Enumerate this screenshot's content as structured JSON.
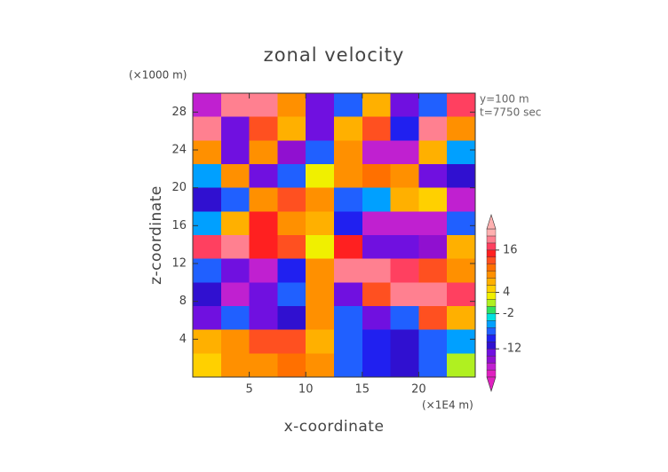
{
  "chart_data": {
    "type": "heatmap",
    "title": "zonal velocity",
    "x_label": "x-coordinate",
    "y_label": "z-coordinate",
    "x_unit": "(×1E4 m)",
    "y_unit": "(×1000 m)",
    "annotations": [
      "y=100 m",
      "t=7750 sec"
    ],
    "xlim": [
      0,
      25
    ],
    "ylim": [
      0,
      30
    ],
    "xticks": [
      5,
      10,
      15,
      20
    ],
    "yticks": [
      4,
      8,
      12,
      16,
      20,
      24,
      28
    ],
    "x": [
      1.25,
      3.75,
      6.25,
      8.75,
      11.25,
      13.75,
      16.25,
      18.75,
      21.25,
      23.75
    ],
    "y": [
      28.75,
      26.25,
      23.75,
      21.25,
      18.75,
      16.25,
      13.75,
      11.25,
      8.75,
      6.25,
      3.75,
      1.25
    ],
    "values": [
      [
        -18,
        18,
        18,
        8,
        -14,
        -8,
        6,
        -14,
        -8,
        16
      ],
      [
        18,
        -14,
        12,
        6,
        -14,
        6,
        12,
        -10,
        18,
        8
      ],
      [
        8,
        -14,
        8,
        -16,
        -8,
        8,
        -18,
        -18,
        6,
        -6
      ],
      [
        -6,
        8,
        -14,
        -8,
        2,
        8,
        10,
        8,
        -14,
        -12
      ],
      [
        -12,
        -8,
        8,
        12,
        8,
        -8,
        -6,
        6,
        4,
        -18
      ],
      [
        -6,
        6,
        14,
        8,
        6,
        -10,
        -18,
        -18,
        -18,
        -8
      ],
      [
        16,
        18,
        14,
        12,
        2,
        14,
        -14,
        -14,
        -16,
        6
      ],
      [
        -8,
        -14,
        -18,
        -10,
        8,
        18,
        18,
        16,
        12,
        8
      ],
      [
        -12,
        -18,
        -14,
        -8,
        8,
        -14,
        12,
        18,
        18,
        16
      ],
      [
        -14,
        -8,
        -14,
        -12,
        8,
        -8,
        -14,
        -8,
        12,
        6
      ],
      [
        6,
        8,
        12,
        12,
        6,
        -8,
        -10,
        -12,
        -8,
        -6
      ],
      [
        4,
        8,
        8,
        10,
        8,
        -8,
        -10,
        -12,
        -8,
        0
      ]
    ],
    "levels": [
      -20,
      -18,
      -16,
      -14,
      -12,
      -10,
      -8,
      -6,
      -4,
      -2,
      0,
      2,
      4,
      6,
      8,
      10,
      12,
      14,
      16,
      18,
      20,
      22
    ],
    "colors": [
      "#e020c0",
      "#c020d0",
      "#9010d0",
      "#7010e0",
      "#3010d0",
      "#2020f0",
      "#2060ff",
      "#00a0ff",
      "#00e0e0",
      "#30e060",
      "#b0f020",
      "#f0f000",
      "#ffd000",
      "#ffb000",
      "#ff9000",
      "#ff7000",
      "#ff5020",
      "#ff2020",
      "#ff4060",
      "#ff8090",
      "#ffb0b0"
    ],
    "colorbar_ticks": [
      16,
      4,
      -2,
      -12
    ]
  }
}
